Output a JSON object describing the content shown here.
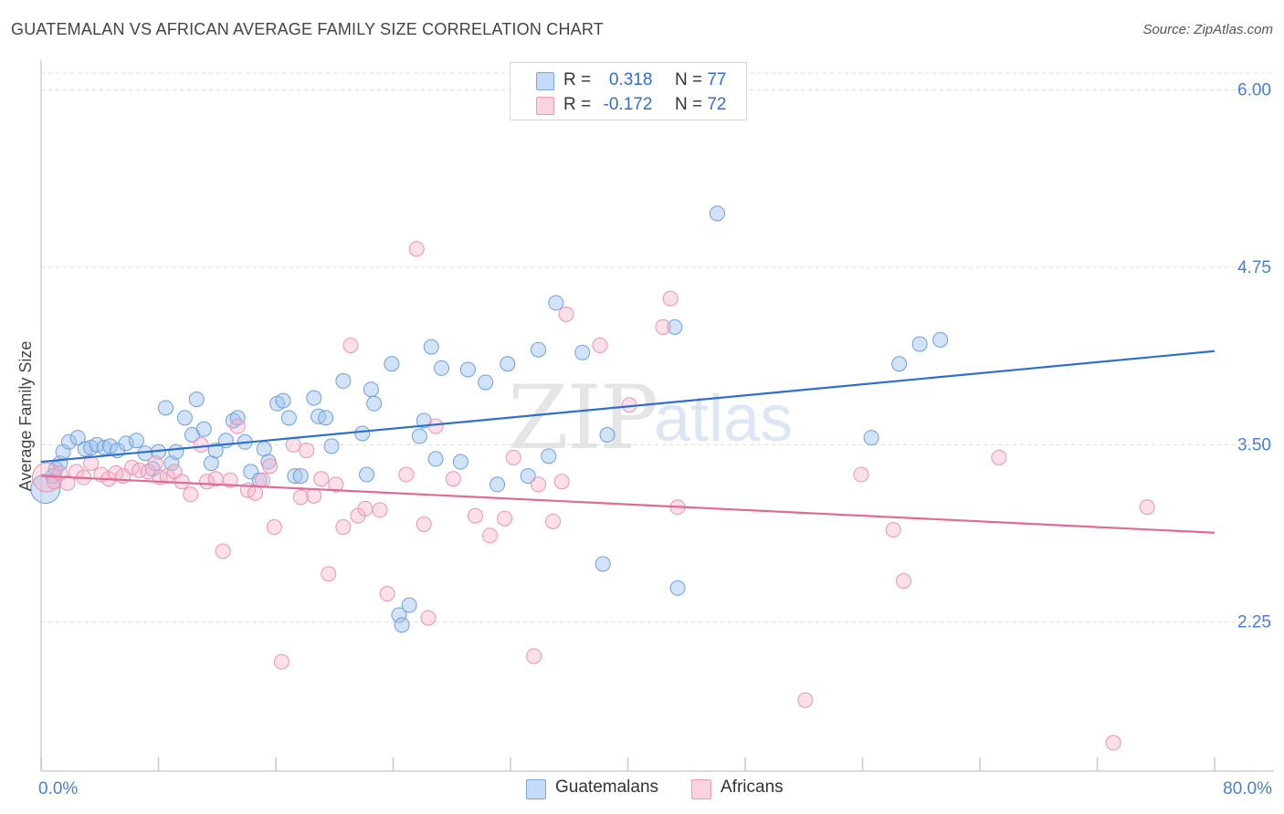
{
  "header": {
    "title": "GUATEMALAN VS AFRICAN AVERAGE FAMILY SIZE CORRELATION CHART",
    "source": "Source: ZipAtlas.com"
  },
  "watermark": {
    "zip": "ZIP",
    "atlas": "atlas"
  },
  "legend": {
    "rows": [
      {
        "r_label": "R =",
        "r_value": "0.318",
        "n_label": "N =",
        "n_value": "77",
        "color": "#a9c8f0"
      },
      {
        "r_label": "R =",
        "r_value": "-0.172",
        "n_label": "N =",
        "n_value": "72",
        "color": "#f5b8ca"
      }
    ]
  },
  "bottom_legend": [
    {
      "label": "Guatemalans",
      "color": "#a9c8f0"
    },
    {
      "label": "Africans",
      "color": "#f5b8ca"
    }
  ],
  "colors": {
    "blue_fill": "rgba(157,193,238,0.45)",
    "blue_stroke": "#6d9fdc",
    "blue_line": "#2f6fcc",
    "pink_fill": "rgba(245,178,200,0.40)",
    "pink_stroke": "#e993b0",
    "pink_line": "#e06a96",
    "tick_blue": "#4a7fd0",
    "grid": "#dcdcdc"
  },
  "chart_data": {
    "type": "scatter",
    "title": "GUATEMALAN VS AFRICAN AVERAGE FAMILY SIZE CORRELATION CHART",
    "ylabel": "Average Family Size",
    "xlabel": "",
    "x_tick_labels": [
      "0.0%",
      "80.0%"
    ],
    "y_tick_labels": [
      "2.25",
      "3.50",
      "4.75",
      "6.00"
    ],
    "y_ticks": [
      2.25,
      3.5,
      4.75,
      6.0
    ],
    "xlim": [
      0,
      80
    ],
    "ylim": [
      1.2,
      6.12
    ],
    "grid": true,
    "legend_position": "top-center",
    "series": [
      {
        "name": "Guatemalans",
        "r": 0.318,
        "n": 77,
        "trend": [
          [
            0,
            3.38
          ],
          [
            80,
            4.16
          ]
        ],
        "points": [
          [
            0.3,
            3.19
          ],
          [
            0.8,
            3.28
          ],
          [
            1.0,
            3.33
          ],
          [
            1.3,
            3.37
          ],
          [
            1.5,
            3.45
          ],
          [
            1.9,
            3.52
          ],
          [
            2.5,
            3.55
          ],
          [
            3.0,
            3.47
          ],
          [
            3.4,
            3.48
          ],
          [
            3.8,
            3.5
          ],
          [
            4.3,
            3.48
          ],
          [
            4.7,
            3.49
          ],
          [
            5.2,
            3.46
          ],
          [
            5.8,
            3.51
          ],
          [
            6.5,
            3.53
          ],
          [
            7.1,
            3.44
          ],
          [
            7.6,
            3.33
          ],
          [
            8.0,
            3.45
          ],
          [
            8.5,
            3.76
          ],
          [
            8.9,
            3.37
          ],
          [
            9.2,
            3.45
          ],
          [
            9.8,
            3.69
          ],
          [
            10.3,
            3.57
          ],
          [
            10.6,
            3.82
          ],
          [
            11.1,
            3.61
          ],
          [
            11.6,
            3.37
          ],
          [
            11.9,
            3.46
          ],
          [
            12.6,
            3.53
          ],
          [
            13.1,
            3.67
          ],
          [
            13.4,
            3.69
          ],
          [
            13.9,
            3.52
          ],
          [
            14.3,
            3.31
          ],
          [
            14.9,
            3.25
          ],
          [
            15.2,
            3.47
          ],
          [
            15.5,
            3.38
          ],
          [
            16.1,
            3.79
          ],
          [
            16.5,
            3.81
          ],
          [
            16.9,
            3.69
          ],
          [
            17.3,
            3.28
          ],
          [
            17.7,
            3.28
          ],
          [
            18.6,
            3.83
          ],
          [
            18.9,
            3.7
          ],
          [
            19.4,
            3.69
          ],
          [
            19.8,
            3.49
          ],
          [
            20.6,
            3.95
          ],
          [
            21.9,
            3.58
          ],
          [
            22.2,
            3.29
          ],
          [
            22.5,
            3.89
          ],
          [
            22.7,
            3.79
          ],
          [
            23.9,
            4.07
          ],
          [
            24.4,
            2.3
          ],
          [
            24.6,
            2.23
          ],
          [
            25.1,
            2.37
          ],
          [
            25.8,
            3.56
          ],
          [
            26.1,
            3.67
          ],
          [
            26.6,
            4.19
          ],
          [
            26.9,
            3.4
          ],
          [
            27.3,
            4.04
          ],
          [
            28.6,
            3.38
          ],
          [
            29.1,
            4.03
          ],
          [
            30.3,
            3.94
          ],
          [
            31.1,
            3.22
          ],
          [
            31.8,
            4.07
          ],
          [
            33.2,
            3.28
          ],
          [
            33.9,
            4.17
          ],
          [
            34.6,
            3.42
          ],
          [
            35.1,
            4.5
          ],
          [
            36.9,
            4.15
          ],
          [
            38.3,
            2.66
          ],
          [
            38.6,
            3.57
          ],
          [
            43.2,
            4.33
          ],
          [
            43.4,
            2.49
          ],
          [
            46.1,
            5.13
          ],
          [
            56.6,
            3.55
          ],
          [
            58.5,
            4.07
          ],
          [
            59.9,
            4.21
          ],
          [
            61.3,
            4.24
          ]
        ]
      },
      {
        "name": "Africans",
        "r": -0.172,
        "n": 72,
        "trend": [
          [
            0,
            3.28
          ],
          [
            80,
            2.88
          ]
        ],
        "points": [
          [
            0.4,
            3.27
          ],
          [
            0.9,
            3.24
          ],
          [
            1.3,
            3.3
          ],
          [
            1.8,
            3.23
          ],
          [
            2.4,
            3.31
          ],
          [
            2.9,
            3.27
          ],
          [
            3.4,
            3.37
          ],
          [
            4.1,
            3.29
          ],
          [
            4.6,
            3.26
          ],
          [
            5.1,
            3.3
          ],
          [
            5.6,
            3.28
          ],
          [
            6.2,
            3.34
          ],
          [
            6.7,
            3.32
          ],
          [
            7.3,
            3.31
          ],
          [
            7.8,
            3.37
          ],
          [
            8.1,
            3.27
          ],
          [
            8.6,
            3.28
          ],
          [
            9.1,
            3.31
          ],
          [
            9.6,
            3.24
          ],
          [
            10.2,
            3.15
          ],
          [
            10.9,
            3.5
          ],
          [
            11.3,
            3.24
          ],
          [
            11.9,
            3.26
          ],
          [
            12.4,
            2.75
          ],
          [
            12.9,
            3.25
          ],
          [
            13.4,
            3.63
          ],
          [
            14.1,
            3.18
          ],
          [
            14.6,
            3.16
          ],
          [
            15.1,
            3.25
          ],
          [
            15.6,
            3.35
          ],
          [
            15.9,
            2.92
          ],
          [
            16.4,
            1.97
          ],
          [
            17.2,
            3.5
          ],
          [
            17.7,
            3.13
          ],
          [
            18.1,
            3.46
          ],
          [
            18.6,
            3.14
          ],
          [
            19.1,
            3.26
          ],
          [
            19.6,
            2.59
          ],
          [
            20.1,
            3.22
          ],
          [
            20.6,
            2.92
          ],
          [
            21.1,
            4.2
          ],
          [
            21.6,
            3.0
          ],
          [
            22.1,
            3.05
          ],
          [
            23.1,
            3.04
          ],
          [
            23.6,
            2.45
          ],
          [
            24.9,
            3.29
          ],
          [
            25.6,
            4.88
          ],
          [
            26.1,
            2.94
          ],
          [
            26.4,
            2.28
          ],
          [
            26.9,
            3.63
          ],
          [
            28.1,
            3.26
          ],
          [
            29.6,
            3.0
          ],
          [
            30.6,
            2.86
          ],
          [
            31.6,
            2.98
          ],
          [
            32.2,
            3.41
          ],
          [
            33.6,
            2.01
          ],
          [
            33.9,
            3.22
          ],
          [
            34.9,
            2.96
          ],
          [
            35.5,
            3.24
          ],
          [
            35.8,
            4.42
          ],
          [
            38.1,
            4.2
          ],
          [
            40.1,
            3.78
          ],
          [
            42.4,
            4.33
          ],
          [
            42.9,
            4.53
          ],
          [
            43.4,
            3.06
          ],
          [
            52.1,
            1.7
          ],
          [
            55.9,
            3.29
          ],
          [
            58.1,
            2.9
          ],
          [
            58.8,
            2.54
          ],
          [
            65.3,
            3.41
          ],
          [
            73.1,
            1.4
          ],
          [
            75.4,
            3.06
          ]
        ]
      }
    ]
  }
}
